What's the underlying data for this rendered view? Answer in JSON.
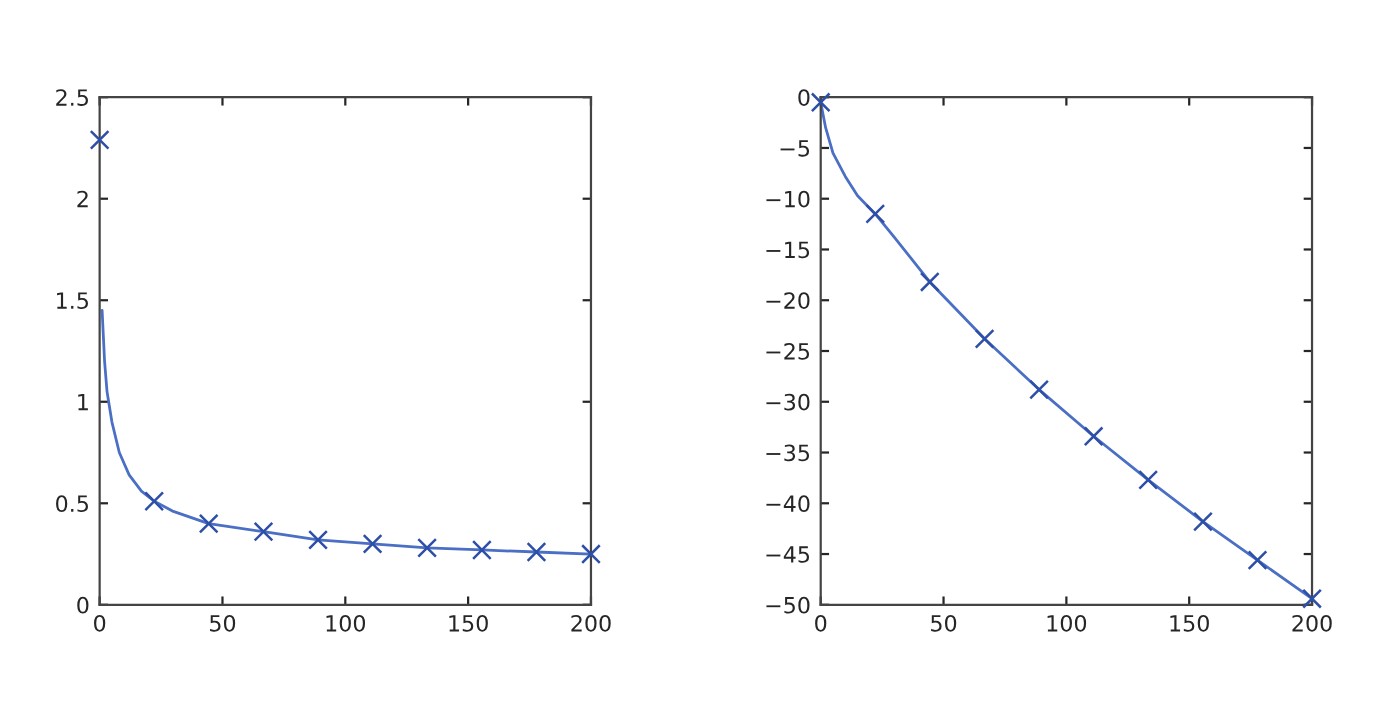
{
  "chart_data": [
    {
      "type": "line",
      "xlim": [
        0,
        200
      ],
      "ylim": [
        0,
        2.5
      ],
      "xticks": [
        0,
        50,
        100,
        150,
        200
      ],
      "yticks": [
        0,
        0.5,
        1,
        1.5,
        2,
        2.5
      ],
      "grid": false,
      "legend": false,
      "series": [
        {
          "color": "#4a6fc4",
          "x": [
            1,
            2,
            3,
            5,
            8,
            12,
            17,
            22.2,
            30,
            44.4,
            66.7,
            88.9,
            111.1,
            133.3,
            155.6,
            177.8,
            200
          ],
          "values": [
            1.45,
            1.2,
            1.05,
            0.9,
            0.75,
            0.64,
            0.56,
            0.51,
            0.46,
            0.4,
            0.36,
            0.32,
            0.3,
            0.28,
            0.27,
            0.26,
            0.25
          ]
        },
        {
          "type": "scatter",
          "color": "#2e4fa8",
          "marker": "cross",
          "x": [
            0,
            22.2,
            44.4,
            66.7,
            88.9,
            111.1,
            133.3,
            155.6,
            177.8,
            200
          ],
          "values": [
            2.29,
            0.51,
            0.4,
            0.36,
            0.32,
            0.3,
            0.28,
            0.27,
            0.26,
            0.25
          ]
        }
      ]
    },
    {
      "type": "line",
      "xlim": [
        0,
        200
      ],
      "ylim": [
        -50,
        0
      ],
      "xticks": [
        0,
        50,
        100,
        150,
        200
      ],
      "yticks": [
        {
          "value": -50,
          "label": "−50"
        },
        {
          "value": -45,
          "label": "−45"
        },
        {
          "value": -40,
          "label": "−40"
        },
        {
          "value": -35,
          "label": "−35"
        },
        {
          "value": -30,
          "label": "−30"
        },
        {
          "value": -25,
          "label": "−25"
        },
        {
          "value": -20,
          "label": "−20"
        },
        {
          "value": -15,
          "label": "−15"
        },
        {
          "value": -10,
          "label": "−10"
        },
        {
          "value": -5,
          "label": "−5"
        },
        0
      ],
      "grid": false,
      "legend": false,
      "series": [
        {
          "color": "#4a6fc4",
          "x": [
            0,
            2,
            5,
            10,
            15,
            22.2,
            30,
            44.4,
            66.7,
            88.9,
            111.1,
            133.3,
            155.6,
            177.8,
            200
          ],
          "values": [
            -0.5,
            -3,
            -5.5,
            -7.8,
            -9.7,
            -11.5,
            -13.8,
            -18.2,
            -23.8,
            -28.8,
            -33.4,
            -37.7,
            -41.8,
            -45.6,
            -49.4
          ]
        },
        {
          "type": "scatter",
          "color": "#2e4fa8",
          "marker": "cross",
          "x": [
            0,
            22.2,
            44.4,
            66.7,
            88.9,
            111.1,
            133.3,
            155.6,
            177.8,
            200
          ],
          "values": [
            -0.5,
            -11.5,
            -18.2,
            -23.8,
            -28.8,
            -33.4,
            -37.7,
            -41.8,
            -45.6,
            -49.4
          ]
        }
      ]
    }
  ]
}
